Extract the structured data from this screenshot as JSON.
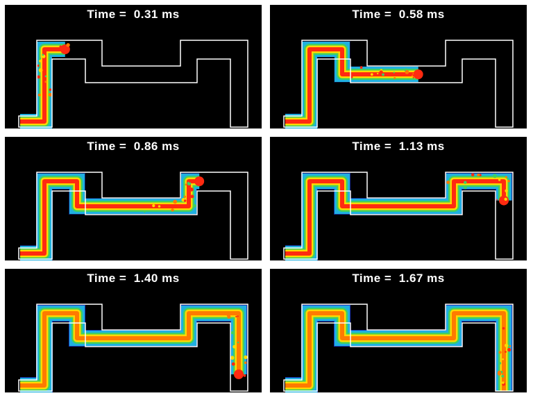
{
  "frames": [
    {
      "label": "Time =  0.31 ms",
      "fill": 0.28
    },
    {
      "label": "Time =  0.58 ms",
      "fill": 0.55
    },
    {
      "label": "Time =  0.86 ms",
      "fill": 0.72
    },
    {
      "label": "Time =  1.13 ms",
      "fill": 0.86
    },
    {
      "label": "Time =  1.40 ms",
      "fill": 0.96
    },
    {
      "label": "Time =  1.67 ms",
      "fill": 1.0
    }
  ],
  "colors": {
    "background": "#000000",
    "outline": "#ffffff",
    "front": "#ff2a10",
    "hot": "#ff7a00",
    "warm": "#ffd800",
    "mid": "#40d060",
    "cool": "#20b0e0",
    "cold": "#1a40d0"
  }
}
